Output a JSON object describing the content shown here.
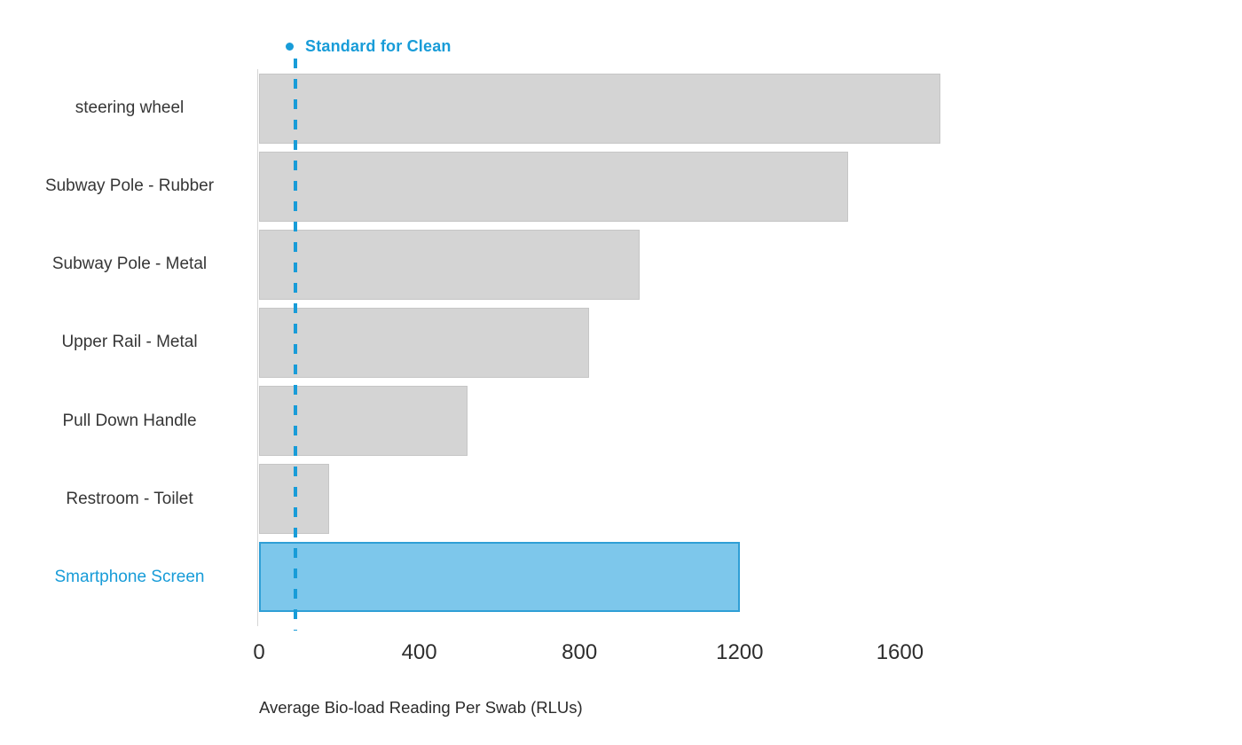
{
  "colors": {
    "accent": "#189cd8",
    "bar_fill": "#d4d4d4",
    "bar_stroke": "#c6c6c6",
    "highlight_fill": "#7dc7eb",
    "highlight_stroke": "#2f9fd6",
    "axis_line": "#d6d6d6",
    "text": "#363636"
  },
  "legend": {
    "label": "Standard for Clean"
  },
  "chart_data": {
    "type": "bar",
    "orientation": "horizontal",
    "title": "",
    "xlabel": "Average Bio-load Reading Per Swab (RLUs)",
    "ylabel": "",
    "categories": [
      "steering wheel",
      "Subway Pole - Rubber",
      "Subway Pole - Metal",
      "Upper Rail - Metal",
      "Pull Down Handle",
      "Restroom - Toilet",
      "Smartphone Screen"
    ],
    "values": [
      1700,
      1470,
      950,
      825,
      520,
      175,
      1200
    ],
    "highlighted_category": "Smartphone Screen",
    "reference_line": {
      "label": "Standard for Clean",
      "value": 90,
      "style": "dashed-vertical"
    },
    "x_ticks": [
      0,
      400,
      800,
      1200,
      1600
    ],
    "xlim": [
      0,
      1800
    ],
    "grid": false,
    "legend_position": "top-left"
  }
}
